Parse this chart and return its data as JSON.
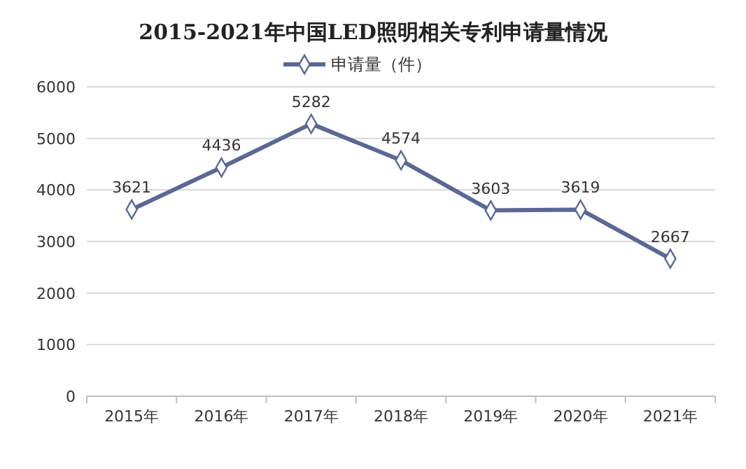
{
  "chart_data": {
    "type": "line",
    "title": "2015-2021年中国LED照明相关专利申请量情况",
    "categories": [
      "2015年",
      "2016年",
      "2017年",
      "2018年",
      "2019年",
      "2020年",
      "2021年"
    ],
    "series": [
      {
        "name": "申请量（件）",
        "color": "#5b6794",
        "values": [
          3621,
          4436,
          5282,
          4574,
          3603,
          3619,
          2667
        ]
      }
    ],
    "ylim": [
      0,
      6000
    ],
    "yticks": [
      0,
      1000,
      2000,
      3000,
      4000,
      5000,
      6000
    ],
    "grid": "y",
    "legend": "top",
    "marker": "diamond",
    "line_style": "solid",
    "data_labels": true
  }
}
